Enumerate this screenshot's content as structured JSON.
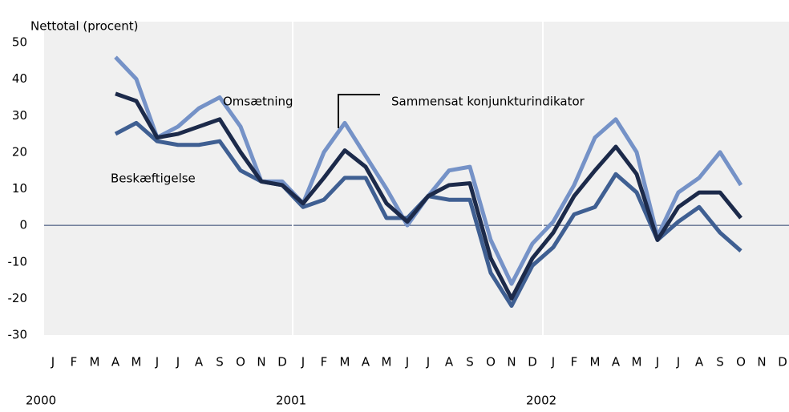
{
  "chart_data": {
    "type": "line",
    "y_label": "Nettotal (procent)",
    "categories": [
      "J",
      "F",
      "M",
      "A",
      "M",
      "J",
      "J",
      "A",
      "S",
      "O",
      "N",
      "D",
      "J",
      "F",
      "M",
      "A",
      "M",
      "J",
      "J",
      "A",
      "S",
      "O",
      "N",
      "D",
      "J",
      "F",
      "M",
      "A",
      "M",
      "J",
      "J",
      "A",
      "S",
      "O",
      "N",
      "D"
    ],
    "years": [
      "2000",
      "2001",
      "2002"
    ],
    "series": [
      {
        "name": "Omsætning",
        "color": "#7592c7",
        "values": [
          null,
          null,
          null,
          46,
          40,
          24,
          27,
          32,
          35,
          27,
          12,
          12,
          6,
          20,
          28,
          19,
          10,
          0,
          8,
          15,
          16,
          -4,
          -16,
          -5,
          1,
          11,
          24,
          29,
          20,
          -3,
          9,
          13,
          20,
          11,
          null,
          null
        ]
      },
      {
        "name": "Beskæftigelse",
        "color": "#3f5f92",
        "values": [
          null,
          null,
          null,
          25,
          28,
          23,
          22,
          22,
          23,
          15,
          12,
          11,
          5,
          7,
          13,
          13,
          2,
          2,
          8,
          7,
          7,
          -13,
          -22,
          -11,
          -6,
          3,
          5,
          14,
          9,
          -4,
          1,
          5,
          -2,
          -7,
          null,
          null
        ]
      },
      {
        "name": "Sammensat konjunkturindikator",
        "color": "#1c2a4a",
        "values": [
          null,
          null,
          null,
          36,
          34,
          24,
          25,
          27,
          29,
          20,
          12,
          11,
          6,
          13,
          20.5,
          16,
          6,
          1,
          8,
          11,
          11.5,
          -9,
          -20,
          -9,
          -2,
          8,
          15,
          21.5,
          14,
          -4,
          5,
          9,
          9,
          2,
          null,
          null
        ]
      }
    ],
    "ylim": [
      -30,
      50
    ],
    "yticks": [
      -30,
      -20,
      -10,
      0,
      10,
      20,
      30,
      40,
      50
    ]
  }
}
